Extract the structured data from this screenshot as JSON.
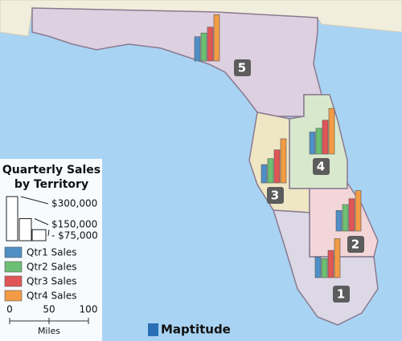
{
  "legend": {
    "title_lines": [
      "Quarterly Sales",
      "by Territory"
    ],
    "size_scale": [
      {
        "value": 300000,
        "label": "$300,000"
      },
      {
        "value": 150000,
        "label": "$150,000"
      },
      {
        "value": 75000,
        "label": "- $75,000"
      }
    ],
    "series": [
      {
        "name": "Qtr1 Sales",
        "color": "#4f8fc6"
      },
      {
        "name": "Qtr2 Sales",
        "color": "#6cbf73"
      },
      {
        "name": "Qtr3 Sales",
        "color": "#e05656"
      },
      {
        "name": "Qtr4 Sales",
        "color": "#f39c45"
      }
    ]
  },
  "distance_scale": {
    "ticks": [
      "0",
      "50",
      "100"
    ],
    "unit": "Miles"
  },
  "territories": [
    {
      "label": "1",
      "values": [
        140000,
        130000,
        185000,
        265000
      ]
    },
    {
      "label": "2",
      "values": [
        140000,
        180000,
        220000,
        275000
      ]
    },
    {
      "label": "3",
      "values": [
        125000,
        165000,
        225000,
        300000
      ]
    },
    {
      "label": "4",
      "values": [
        150000,
        175000,
        230000,
        310000
      ]
    },
    {
      "label": "5",
      "values": [
        165000,
        190000,
        230000,
        315000
      ]
    }
  ],
  "logo": "Maptitude"
}
